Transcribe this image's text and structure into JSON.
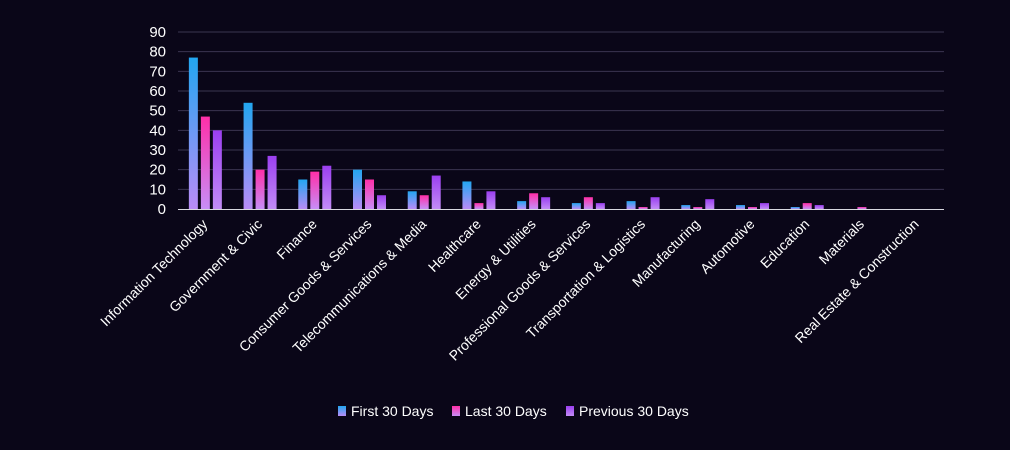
{
  "chart_data": {
    "type": "bar",
    "title": "",
    "xlabel": "",
    "ylabel": "",
    "ylim": [
      0,
      90
    ],
    "yticks": [
      0,
      10,
      20,
      30,
      40,
      50,
      60,
      70,
      80,
      90
    ],
    "grid": true,
    "legend_position": "bottom",
    "categories": [
      "Information Technology",
      "Government & Civic",
      "Finance",
      "Consumer Goods & Services",
      "Telecommunications & Media",
      "Healthcare",
      "Energy & Utilities",
      "Professional Goods & Services",
      "Transportation & Logistics",
      "Manufacturing",
      "Automotive",
      "Education",
      "Materials",
      "Real Estate & Construction"
    ],
    "series": [
      {
        "name": "First 30 Days",
        "color_top": "#22a6f0",
        "color_bottom": "#b98cf7",
        "values": [
          77,
          54,
          15,
          20,
          9,
          14,
          4,
          3,
          4,
          2,
          2,
          1,
          0,
          0
        ]
      },
      {
        "name": "Last 30 Days",
        "color_top": "#ff2fa8",
        "color_bottom": "#c78ef7",
        "values": [
          47,
          20,
          19,
          15,
          7,
          3,
          8,
          6,
          1,
          1,
          1,
          3,
          1,
          0
        ]
      },
      {
        "name": "Previous 30 Days",
        "color_top": "#9b3ff0",
        "color_bottom": "#c28cf6",
        "values": [
          40,
          27,
          22,
          7,
          17,
          9,
          6,
          3,
          6,
          5,
          3,
          2,
          0,
          0
        ]
      }
    ]
  }
}
